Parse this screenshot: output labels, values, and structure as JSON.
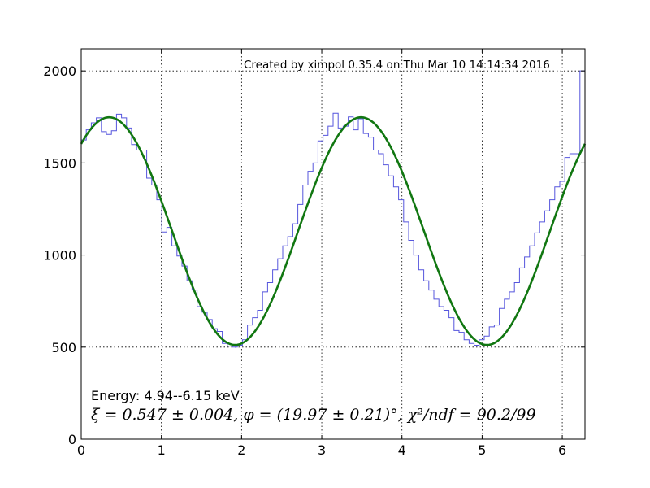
{
  "chart_data": {
    "type": "line",
    "title": "",
    "xlabel": "",
    "ylabel": "",
    "xlim": [
      0,
      6.283
    ],
    "ylim": [
      0,
      2120
    ],
    "grid": true,
    "x_ticks": [
      0,
      1,
      2,
      3,
      4,
      5,
      6
    ],
    "y_ticks": [
      0,
      500,
      1000,
      1500,
      2000
    ],
    "annotations": {
      "created": "Created by ximpol 0.35.4 on Thu Mar 10 14:14:34 2016",
      "energy": "Energy: 4.94--6.15 keV",
      "fit_summary": "ξ = 0.547 ± 0.004, φ = (19.97 ± 0.21)°, χ²/ndf = 90.2/99"
    },
    "series": [
      {
        "style": "histogram",
        "color": "#5555dd",
        "bin_width": 0.06283,
        "values": [
          1625,
          1680,
          1718,
          1745,
          1670,
          1655,
          1675,
          1765,
          1745,
          1690,
          1600,
          1570,
          1570,
          1418,
          1380,
          1300,
          1125,
          1150,
          1050,
          995,
          940,
          860,
          810,
          720,
          690,
          650,
          600,
          585,
          520,
          505,
          500,
          510,
          540,
          620,
          660,
          700,
          800,
          850,
          920,
          980,
          1050,
          1100,
          1170,
          1275,
          1380,
          1455,
          1500,
          1620,
          1650,
          1700,
          1770,
          1690,
          1700,
          1750,
          1680,
          1740,
          1660,
          1640,
          1570,
          1550,
          1490,
          1430,
          1370,
          1300,
          1180,
          1080,
          1000,
          920,
          860,
          810,
          760,
          720,
          700,
          660,
          590,
          580,
          540,
          520,
          510,
          540,
          560,
          610,
          620,
          710,
          760,
          800,
          850,
          930,
          990,
          1050,
          1120,
          1180,
          1240,
          1300,
          1370,
          1400,
          1530,
          1550,
          1550,
          2000
        ]
      },
      {
        "style": "curve",
        "color": "#117711",
        "function": "A*(1 + xi*cos(2*(x - phi)))",
        "A": 1130,
        "xi": 0.547,
        "phi_deg": 19.97
      }
    ]
  }
}
